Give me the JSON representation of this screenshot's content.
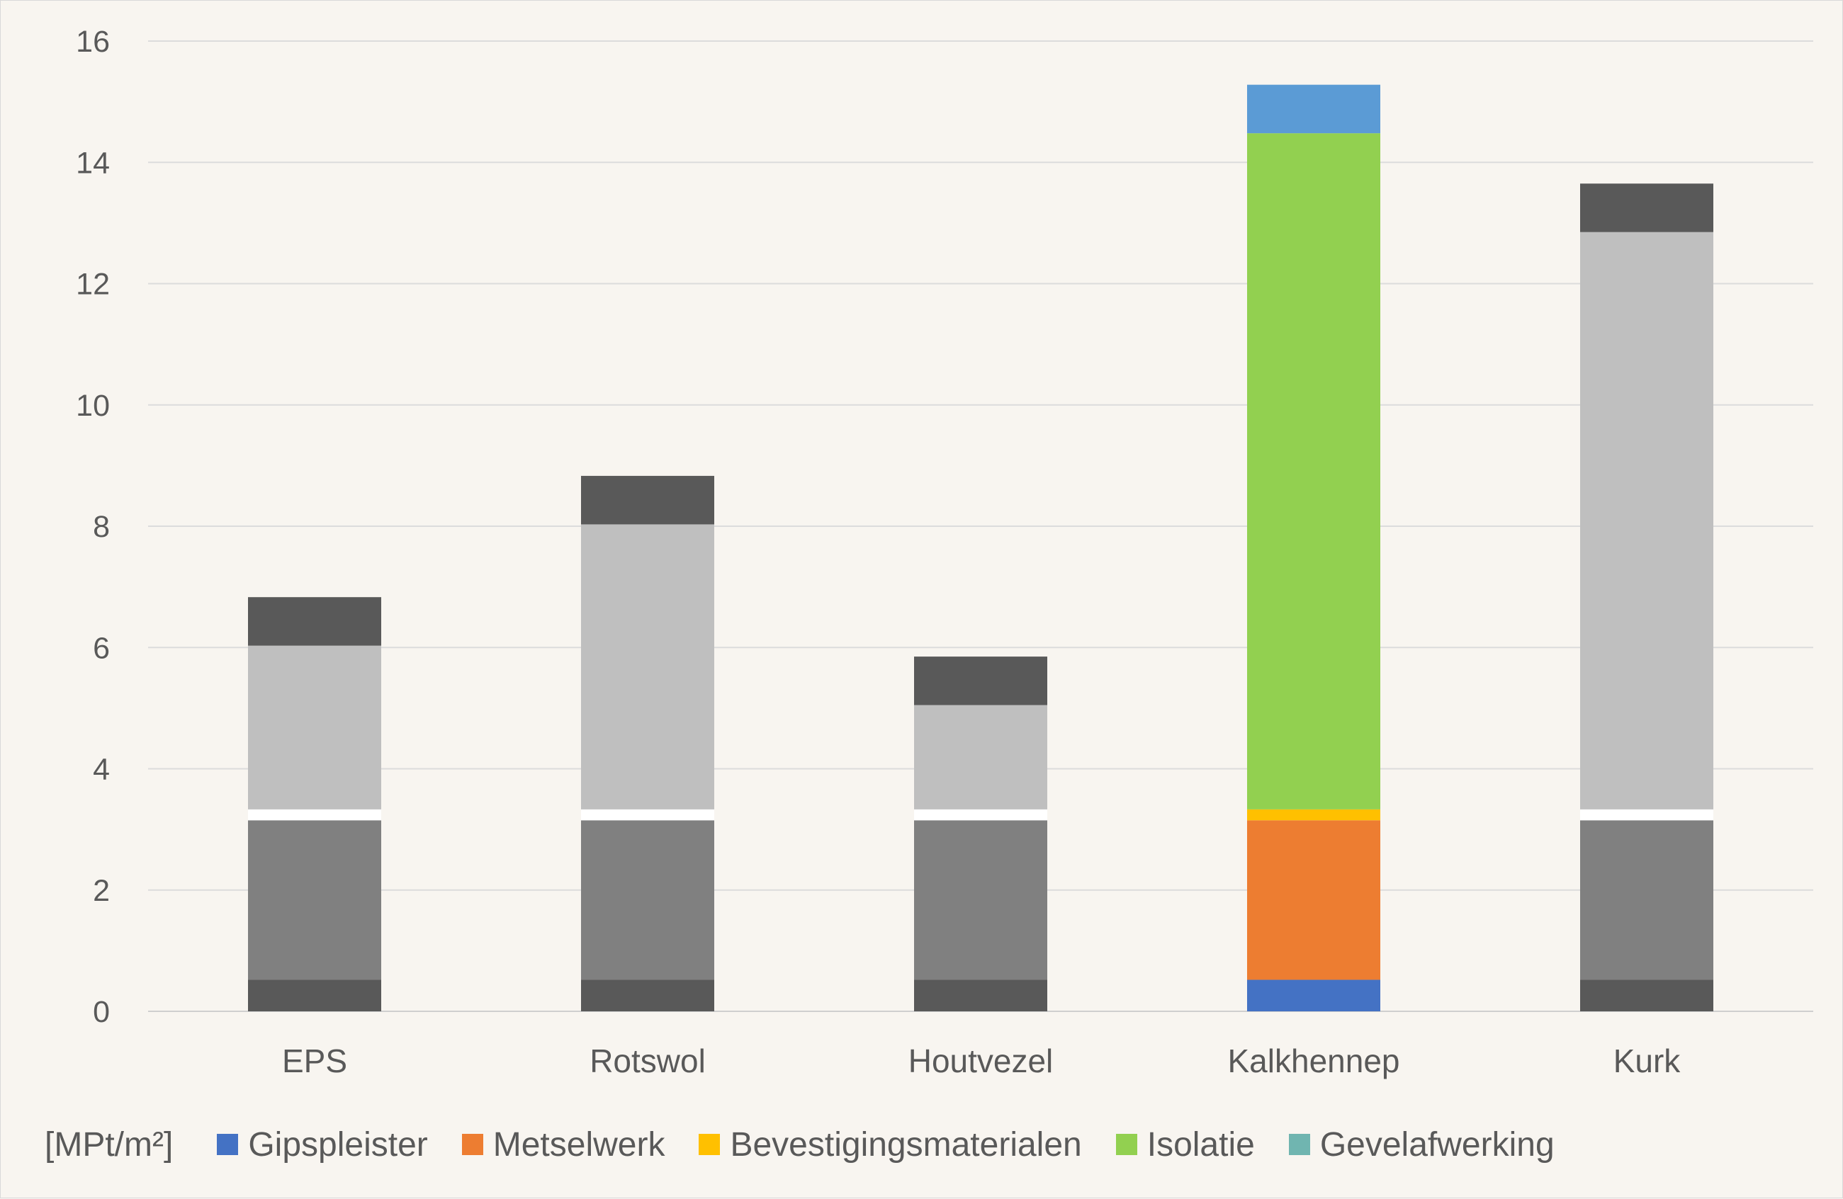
{
  "chart_data": {
    "type": "bar",
    "stacked": true,
    "categories": [
      "EPS",
      "Rotswol",
      "Houtvezel",
      "Kalkhennep",
      "Kurk"
    ],
    "ylim": [
      0,
      16
    ],
    "yticks": [
      0,
      2,
      4,
      6,
      8,
      10,
      12,
      14,
      16
    ],
    "grid": true,
    "legend_position": "bottom",
    "unit_label": "[MPt/m²]",
    "series": [
      {
        "name": "Gipspleister",
        "color": "#4472c4",
        "legend": true,
        "values": [
          0.52,
          0.52,
          0.52,
          0.52,
          0.52
        ],
        "colors": [
          "#595959",
          "#595959",
          "#595959",
          "#4472c4",
          "#595959"
        ]
      },
      {
        "name": "Metselwerk",
        "color": "#ed7d31",
        "legend": true,
        "values": [
          2.63,
          2.63,
          2.63,
          2.63,
          2.63
        ],
        "colors": [
          "#808080",
          "#808080",
          "#808080",
          "#ed7d31",
          "#808080"
        ]
      },
      {
        "name": "Bevestigingsmaterialen",
        "color": "#ffc000",
        "legend": true,
        "values": [
          0.18,
          0.18,
          0.18,
          0.18,
          0.18
        ],
        "colors": [
          "#ffffff",
          "#ffffff",
          "#ffffff",
          "#ffc000",
          "#ffffff"
        ]
      },
      {
        "name": "Isolatie",
        "color": "#92d050",
        "legend": true,
        "values": [
          2.7,
          4.7,
          1.72,
          11.15,
          9.52
        ],
        "colors": [
          "#bfbfbf",
          "#bfbfbf",
          "#bfbfbf",
          "#92d050",
          "#bfbfbf"
        ]
      },
      {
        "name": "Gevelafwerking",
        "color": "#70b5b0",
        "legend": true,
        "values": [
          0.8,
          0.8,
          0.8,
          0.8,
          0.8
        ],
        "colors": [
          "#595959",
          "#595959",
          "#595959",
          "#5b9bd5",
          "#595959"
        ]
      }
    ]
  }
}
